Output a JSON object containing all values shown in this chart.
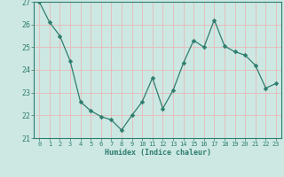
{
  "x": [
    0,
    1,
    2,
    3,
    4,
    5,
    6,
    7,
    8,
    9,
    10,
    11,
    12,
    13,
    14,
    15,
    16,
    17,
    18,
    19,
    20,
    21,
    22,
    23
  ],
  "y": [
    27.0,
    26.1,
    25.5,
    24.4,
    22.6,
    22.2,
    21.95,
    21.8,
    21.35,
    22.0,
    22.6,
    23.65,
    22.3,
    23.1,
    24.3,
    25.3,
    25.0,
    26.2,
    25.05,
    24.8,
    24.65,
    24.2,
    23.2,
    23.4
  ],
  "line_color": "#2e7d6e",
  "marker": "D",
  "marker_size": 2.5,
  "bg_color": "#cde8e3",
  "grid_color": "#b0d5cf",
  "axis_color": "#2e7d6e",
  "text_color": "#2e7d6e",
  "xlabel": "Humidex (Indice chaleur)",
  "xlim": [
    -0.5,
    23.5
  ],
  "ylim": [
    21,
    27
  ],
  "yticks": [
    21,
    22,
    23,
    24,
    25,
    26,
    27
  ],
  "xticks": [
    0,
    1,
    2,
    3,
    4,
    5,
    6,
    7,
    8,
    9,
    10,
    11,
    12,
    13,
    14,
    15,
    16,
    17,
    18,
    19,
    20,
    21,
    22,
    23
  ]
}
